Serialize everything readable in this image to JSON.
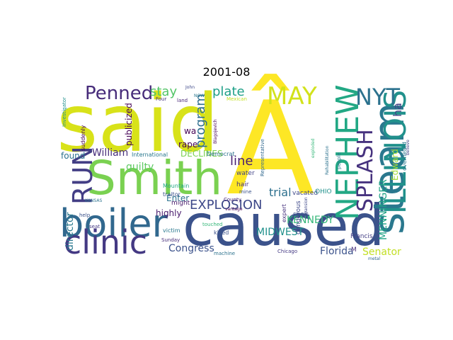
{
  "title": "2001-08",
  "words": [
    {
      "text": "said",
      "color": "#d8e219"
    },
    {
      "text": "Â",
      "color": "#fde725"
    },
    {
      "text": "caused",
      "color": "#3b528b"
    },
    {
      "text": "Smith",
      "color": "#7ad151"
    },
    {
      "text": "boiler",
      "color": "#31688e"
    },
    {
      "text": "clinic",
      "color": "#443983"
    },
    {
      "text": "steam",
      "color": "#2a788e"
    },
    {
      "text": "ILLINOIS",
      "color": "#21918c"
    },
    {
      "text": "NEPHEW",
      "color": "#22a884"
    },
    {
      "text": "RUN",
      "color": "#433e85"
    },
    {
      "text": "NYT",
      "color": "#2c728e"
    },
    {
      "text": "SPLASH",
      "color": "#46327e"
    },
    {
      "text": "MAY",
      "color": "#d2e21b"
    },
    {
      "text": "Penned",
      "color": "#472c7a"
    },
    {
      "text": "EXPLOSION",
      "color": "#3e4989"
    },
    {
      "text": "plate",
      "color": "#1fa088"
    },
    {
      "text": "stay",
      "color": "#54c568"
    },
    {
      "text": "program",
      "color": "#2e6e8e"
    },
    {
      "text": "line",
      "color": "#481f70"
    },
    {
      "text": "MENNINGER",
      "color": "#20a386"
    },
    {
      "text": "ha",
      "color": "#414487"
    },
    {
      "text": "Edward",
      "color": "#a5db36"
    },
    {
      "text": "trial",
      "color": "#2d708e"
    },
    {
      "text": "KENNEDY",
      "color": "#35b779"
    },
    {
      "text": "Florida",
      "color": "#3b528b"
    },
    {
      "text": "Senator",
      "color": "#c2df23"
    },
    {
      "text": "MIDWEST",
      "color": "#21918c"
    },
    {
      "text": "Congress",
      "color": "#3b528b"
    },
    {
      "text": "director",
      "color": "#2a788e"
    },
    {
      "text": "William",
      "color": "#472d7b"
    },
    {
      "text": "found",
      "color": "#2c728e"
    },
    {
      "text": "guilty",
      "color": "#5ec962"
    },
    {
      "text": "publicized",
      "color": "#440154"
    },
    {
      "text": "highly",
      "color": "#481a6c"
    },
    {
      "text": "rape",
      "color": "#440154"
    },
    {
      "text": "Enter",
      "color": "#2c728e"
    },
    {
      "text": "wa",
      "color": "#440154"
    },
    {
      "text": "DECLINES",
      "color": "#7ad151"
    },
    {
      "text": "suddenly",
      "color": "#440154"
    },
    {
      "text": "might",
      "color": "#481a6c"
    },
    {
      "text": "water",
      "color": "#414487"
    },
    {
      "text": "hair",
      "color": "#46327e"
    },
    {
      "text": "seek",
      "color": "#3b528b"
    },
    {
      "text": "vacated",
      "color": "#3e4989"
    },
    {
      "text": "OHIO",
      "color": "#21918c"
    },
    {
      "text": "Francis",
      "color": "#433e85"
    },
    {
      "text": "overheard",
      "color": "#2a788e"
    },
    {
      "text": "dangerous",
      "color": "#3e4989"
    },
    {
      "text": "Chicago",
      "color": "#443983"
    },
    {
      "text": "victim",
      "color": "#2a788e"
    },
    {
      "text": "killed",
      "color": "#3b528b"
    },
    {
      "text": "touched",
      "color": "#35b779"
    },
    {
      "text": "expert",
      "color": "#46327e"
    },
    {
      "text": "Sunday",
      "color": "#472d7b"
    },
    {
      "text": "machine",
      "color": "#2c728e"
    },
    {
      "text": "Mountain",
      "color": "#22a884"
    },
    {
      "text": "traitor",
      "color": "#3b528b"
    },
    {
      "text": "International",
      "color": "#2a788e"
    },
    {
      "text": "Democrat",
      "color": "#2c728e"
    },
    {
      "text": "Representative",
      "color": "#31688e"
    },
    {
      "text": "County",
      "color": "#482878"
    },
    {
      "text": "exploded",
      "color": "#35b779"
    },
    {
      "text": "Rehabilitation",
      "color": "#2c728e"
    },
    {
      "text": "Investigator",
      "color": "#21918c"
    },
    {
      "text": "KANSAS",
      "color": "#2c728e"
    },
    {
      "text": "Blagojevich",
      "color": "#440154"
    },
    {
      "text": "metal",
      "color": "#31688e"
    },
    {
      "text": "believe",
      "color": "#414487"
    },
    {
      "text": "help",
      "color": "#3b528b"
    },
    {
      "text": "seat",
      "color": "#443983"
    },
    {
      "text": "land",
      "color": "#482878"
    },
    {
      "text": "John",
      "color": "#3e4989"
    },
    {
      "text": "Four",
      "color": "#46327e"
    },
    {
      "text": "NOW",
      "color": "#2a788e"
    },
    {
      "text": "mine",
      "color": "#3b528b"
    },
    {
      "text": "people",
      "color": "#2a788e"
    },
    {
      "text": "expansion",
      "color": "#3e4989"
    },
    {
      "text": "vantage",
      "color": "#440154"
    },
    {
      "text": "Mexican",
      "color": "#c2df23"
    },
    {
      "text": "M",
      "color": "#472d7b"
    }
  ]
}
